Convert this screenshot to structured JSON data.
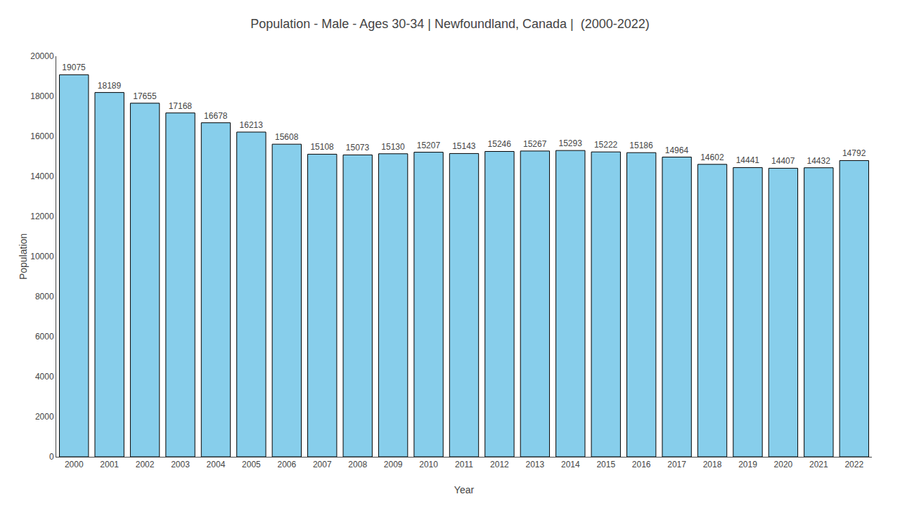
{
  "chart_data": {
    "type": "bar",
    "title": "Population - Male - Ages 30-34 | Newfoundland, Canada |  (2000-2022)",
    "x_label": "Year",
    "y_label": "Population",
    "categories": [
      "2000",
      "2001",
      "2002",
      "2003",
      "2004",
      "2005",
      "2006",
      "2007",
      "2008",
      "2009",
      "2010",
      "2011",
      "2012",
      "2013",
      "2014",
      "2015",
      "2016",
      "2017",
      "2018",
      "2019",
      "2020",
      "2021",
      "2022"
    ],
    "values": [
      19075,
      18189,
      17655,
      17168,
      16678,
      16213,
      15608,
      15108,
      15073,
      15130,
      15207,
      15143,
      15246,
      15267,
      15293,
      15222,
      15186,
      14964,
      14602,
      14441,
      14407,
      14432,
      14792
    ],
    "color": "#87CEEB",
    "ylim": [
      0,
      20000
    ],
    "yticks": [
      0,
      2000,
      4000,
      6000,
      8000,
      10000,
      12000,
      14000,
      16000,
      18000,
      20000
    ],
    "grid": false,
    "data_labels": true
  }
}
